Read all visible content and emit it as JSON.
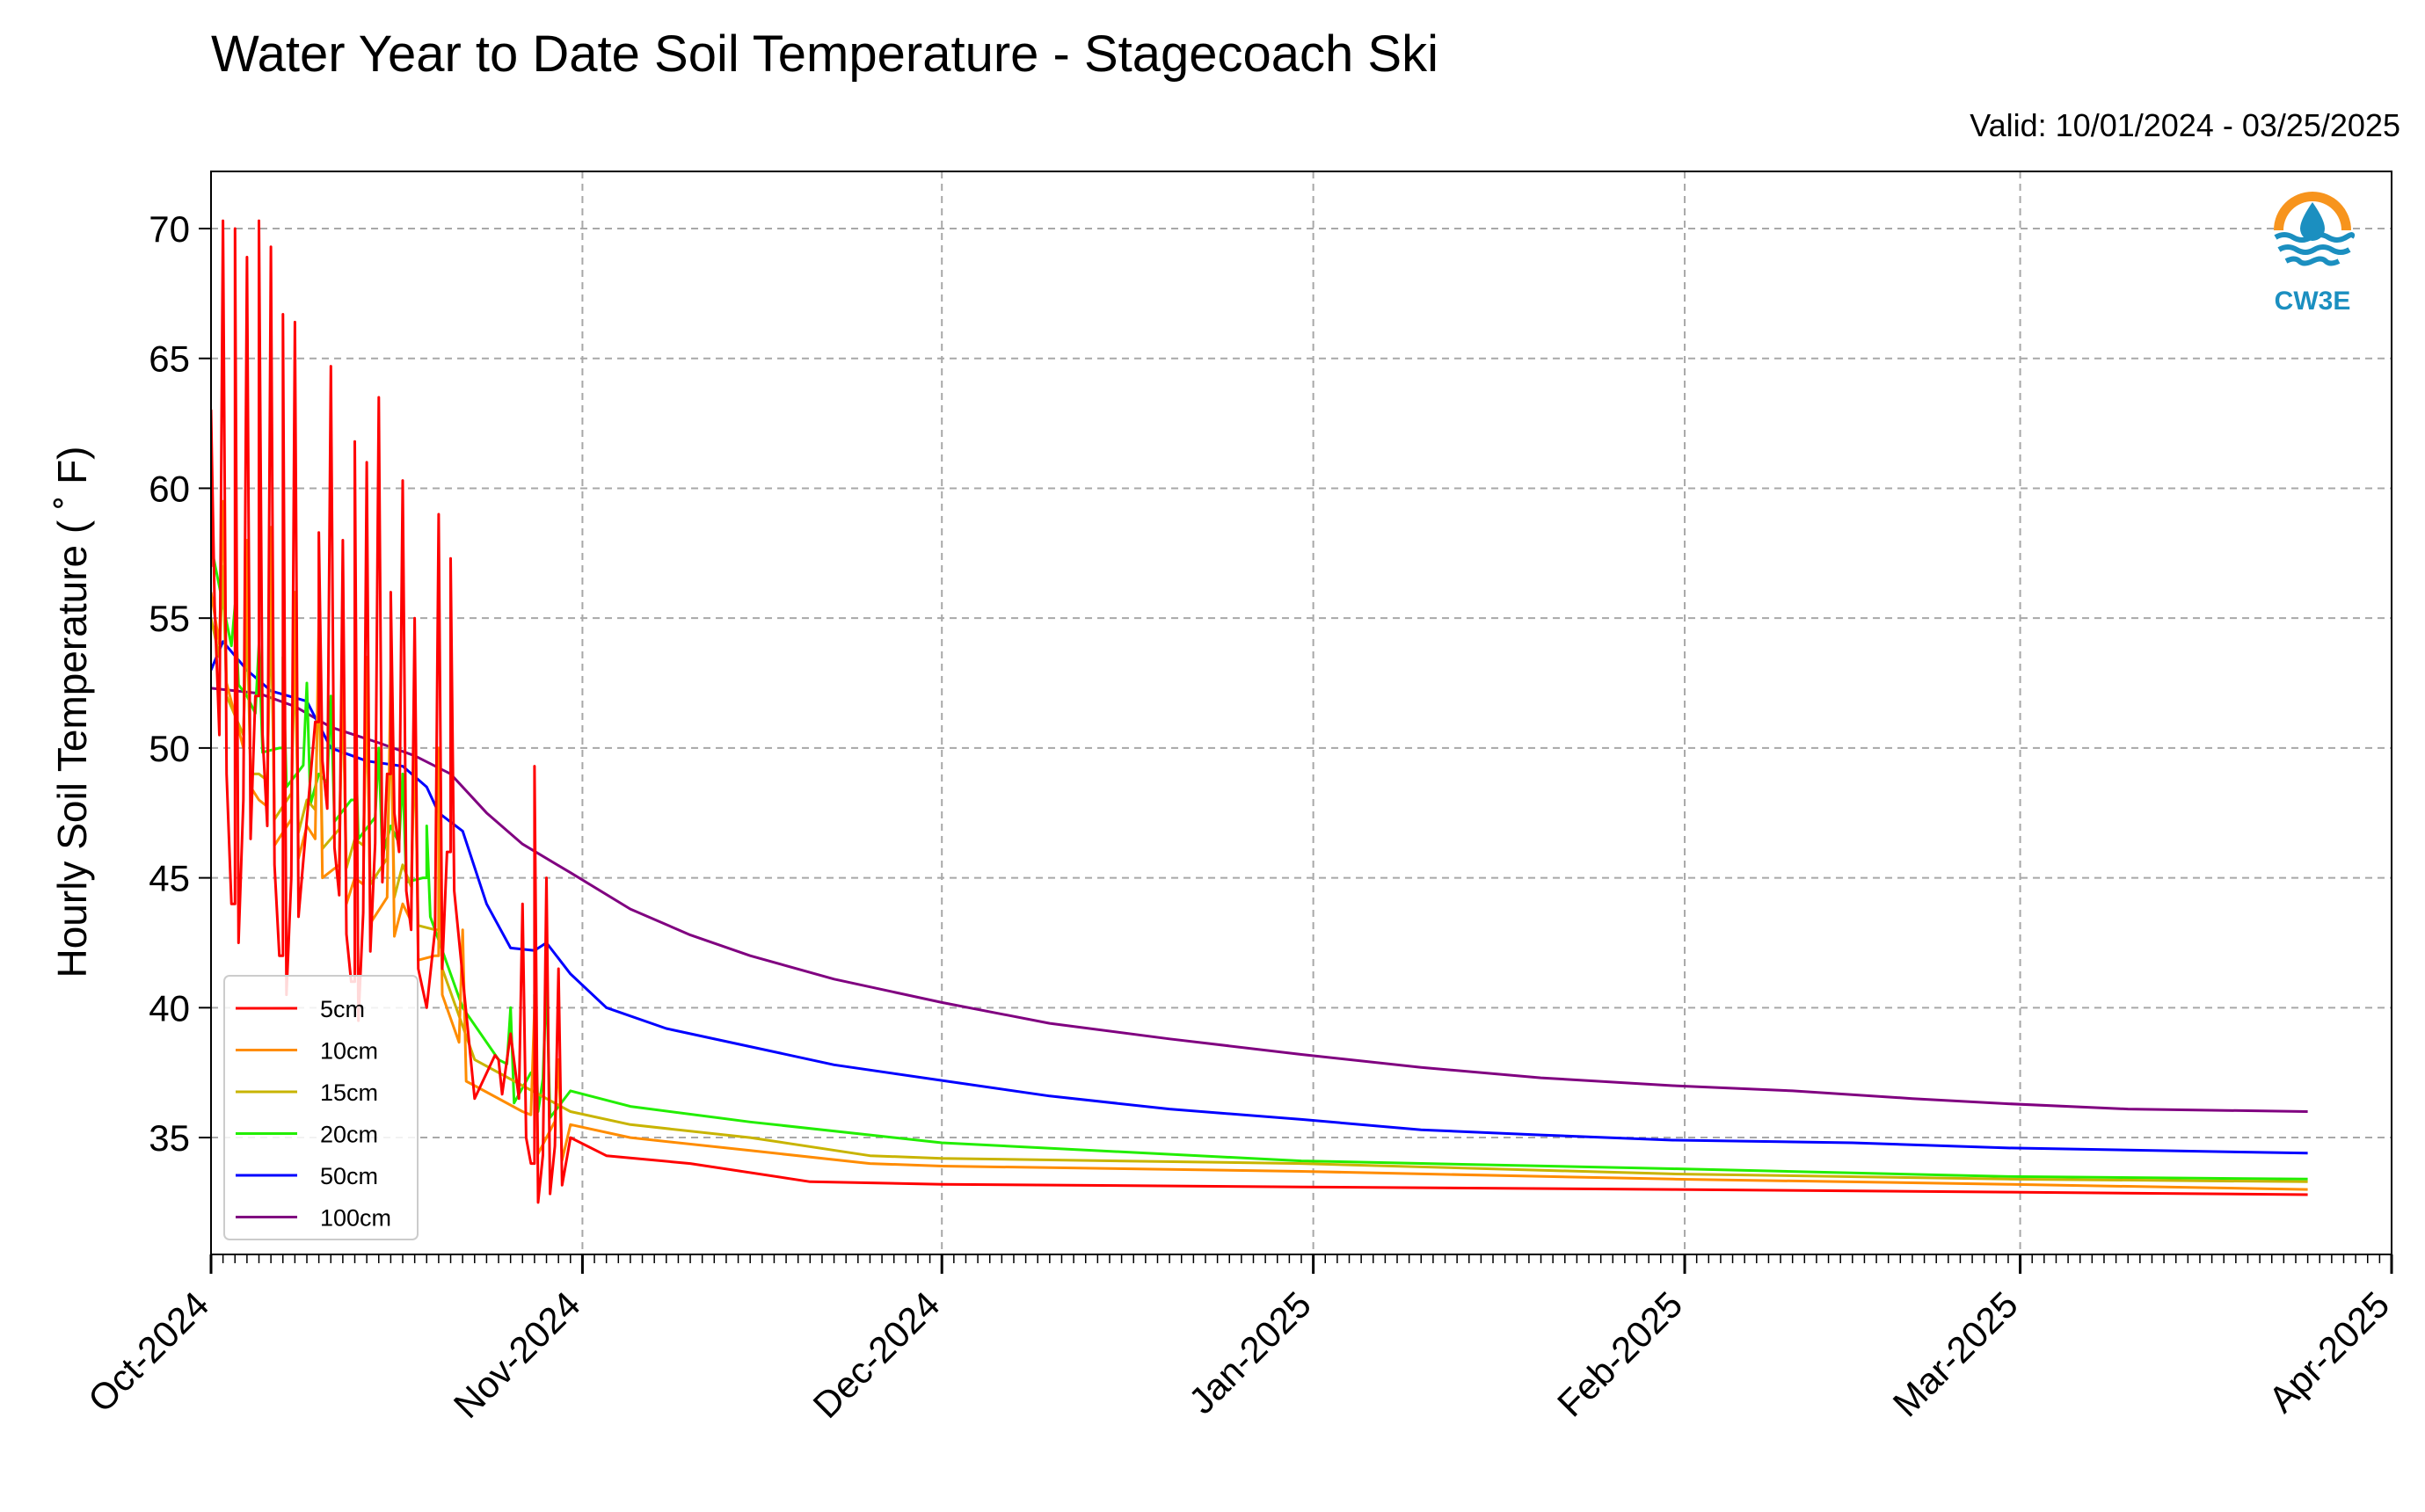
{
  "title": "Water Year to Date Soil Temperature - Stagecoach Ski",
  "valid": "Valid: 10/01/2024 - 03/25/2025",
  "logo": {
    "text": "CW3E",
    "icon": "water-drop-logo-icon",
    "color_orange": "#f7941d",
    "color_blue": "#1b8fc0"
  },
  "chart_data": {
    "type": "line",
    "ylabel": "Hourly Soil Temperature ($^\\circ$F)",
    "ylabel_display": "Hourly Soil Temperature ( ˚ F)",
    "xlabel": "",
    "ylim": [
      30.5,
      72.2
    ],
    "xlim": [
      "2024-10-01",
      "2025-04-01"
    ],
    "yticks": [
      35,
      40,
      45,
      50,
      55,
      60,
      65,
      70
    ],
    "xticks": [
      "Oct-2024",
      "Nov-2024",
      "Dec-2024",
      "Jan-2025",
      "Feb-2025",
      "Mar-2025",
      "Apr-2025"
    ],
    "grid": true,
    "legend_position": "lower-left",
    "series": [
      {
        "name": "5cm",
        "color": "#ff0000",
        "points": [
          [
            "2024-10-01",
            57
          ],
          [
            "2024-10-03",
            44
          ],
          [
            "2024-10-05",
            52
          ],
          [
            "2024-10-07",
            42
          ],
          [
            "2024-10-10",
            51
          ],
          [
            "2024-10-13",
            41
          ],
          [
            "2024-10-16",
            49
          ],
          [
            "2024-10-19",
            40
          ],
          [
            "2024-10-21",
            46
          ],
          [
            "2024-10-23",
            36.5
          ],
          [
            "2024-10-26",
            39
          ],
          [
            "2024-10-28",
            34
          ],
          [
            "2024-10-31",
            35
          ],
          [
            "2024-11-03",
            34.3
          ],
          [
            "2024-11-10",
            34
          ],
          [
            "2024-11-20",
            33.3
          ],
          [
            "2024-12-01",
            33.2
          ],
          [
            "2024-12-31",
            33.1
          ],
          [
            "2025-01-31",
            33
          ],
          [
            "2025-02-28",
            32.9
          ],
          [
            "2025-03-25",
            32.8
          ]
        ],
        "spikes": [
          [
            "2024-10-01",
            63
          ],
          [
            "2024-10-02",
            70.3
          ],
          [
            "2024-10-03",
            70
          ],
          [
            "2024-10-04",
            68.9
          ],
          [
            "2024-10-05",
            70.3
          ],
          [
            "2024-10-06",
            69.3
          ],
          [
            "2024-10-07",
            66.7
          ],
          [
            "2024-10-08",
            66.4
          ],
          [
            "2024-10-10",
            58.3
          ],
          [
            "2024-10-11",
            64.7
          ],
          [
            "2024-10-12",
            58
          ],
          [
            "2024-10-13",
            61.8
          ],
          [
            "2024-10-14",
            61
          ],
          [
            "2024-10-15",
            63.5
          ],
          [
            "2024-10-16",
            56
          ],
          [
            "2024-10-17",
            60.3
          ],
          [
            "2024-10-18",
            55
          ],
          [
            "2024-10-20",
            59
          ],
          [
            "2024-10-21",
            57.3
          ],
          [
            "2024-10-25",
            38
          ],
          [
            "2024-10-27",
            44
          ],
          [
            "2024-10-28",
            49.3
          ],
          [
            "2024-10-29",
            45
          ],
          [
            "2024-10-30",
            41.5
          ]
        ]
      },
      {
        "name": "10cm",
        "color": "#ff8c00",
        "points": [
          [
            "2024-10-01",
            56
          ],
          [
            "2024-10-05",
            48
          ],
          [
            "2024-10-09",
            47
          ],
          [
            "2024-10-13",
            45
          ],
          [
            "2024-10-17",
            44
          ],
          [
            "2024-10-20",
            42
          ],
          [
            "2024-10-23",
            37
          ],
          [
            "2024-10-27",
            36
          ],
          [
            "2024-10-31",
            35.5
          ],
          [
            "2024-11-05",
            35
          ],
          [
            "2024-11-15",
            34.5
          ],
          [
            "2024-11-25",
            34
          ],
          [
            "2024-12-01",
            33.9
          ],
          [
            "2024-12-31",
            33.7
          ],
          [
            "2025-01-31",
            33.4
          ],
          [
            "2025-02-28",
            33.2
          ],
          [
            "2025-03-25",
            33
          ]
        ],
        "spikes": [
          [
            "2024-10-02",
            59.5
          ],
          [
            "2024-10-04",
            58
          ],
          [
            "2024-10-06",
            58.5
          ],
          [
            "2024-10-08",
            56
          ],
          [
            "2024-10-10",
            55
          ],
          [
            "2024-10-12",
            54
          ],
          [
            "2024-10-14",
            53.5
          ],
          [
            "2024-10-16",
            53
          ],
          [
            "2024-10-18",
            52
          ],
          [
            "2024-10-20",
            50
          ],
          [
            "2024-10-22",
            43
          ],
          [
            "2024-10-28",
            40
          ],
          [
            "2024-10-30",
            38
          ]
        ]
      },
      {
        "name": "15cm",
        "color": "#c8b400",
        "points": [
          [
            "2024-10-01",
            55
          ],
          [
            "2024-10-05",
            49
          ],
          [
            "2024-10-09",
            48
          ],
          [
            "2024-10-13",
            46.5
          ],
          [
            "2024-10-17",
            45.5
          ],
          [
            "2024-10-20",
            43
          ],
          [
            "2024-10-23",
            38
          ],
          [
            "2024-10-27",
            37
          ],
          [
            "2024-10-31",
            36
          ],
          [
            "2024-11-05",
            35.5
          ],
          [
            "2024-11-15",
            35
          ],
          [
            "2024-11-25",
            34.3
          ],
          [
            "2024-12-01",
            34.2
          ],
          [
            "2024-12-31",
            34
          ],
          [
            "2025-01-31",
            33.6
          ],
          [
            "2025-02-28",
            33.4
          ],
          [
            "2025-03-25",
            33.3
          ]
        ],
        "spikes": [
          [
            "2024-10-02",
            57
          ],
          [
            "2024-10-04",
            55
          ],
          [
            "2024-10-06",
            55.5
          ],
          [
            "2024-10-08",
            53.5
          ],
          [
            "2024-10-10",
            53
          ],
          [
            "2024-10-12",
            52
          ],
          [
            "2024-10-14",
            51.5
          ],
          [
            "2024-10-16",
            51
          ],
          [
            "2024-10-18",
            50
          ],
          [
            "2024-10-20",
            48
          ]
        ]
      },
      {
        "name": "20cm",
        "color": "#22ee00",
        "points": [
          [
            "2024-10-01",
            57.8
          ],
          [
            "2024-10-04",
            52
          ],
          [
            "2024-10-07",
            50
          ],
          [
            "2024-10-10",
            49
          ],
          [
            "2024-10-13",
            48
          ],
          [
            "2024-10-16",
            47
          ],
          [
            "2024-10-19",
            45
          ],
          [
            "2024-10-22",
            40
          ],
          [
            "2024-10-25",
            38
          ],
          [
            "2024-10-28",
            37.5
          ],
          [
            "2024-10-31",
            36.8
          ],
          [
            "2024-11-05",
            36.2
          ],
          [
            "2024-11-15",
            35.6
          ],
          [
            "2024-11-25",
            35.1
          ],
          [
            "2024-12-01",
            34.8
          ],
          [
            "2024-12-31",
            34.1
          ],
          [
            "2025-01-31",
            33.8
          ],
          [
            "2025-02-28",
            33.5
          ],
          [
            "2025-03-25",
            33.4
          ]
        ],
        "spikes": [
          [
            "2024-10-03",
            55.5
          ],
          [
            "2024-10-05",
            54
          ],
          [
            "2024-10-07",
            53.5
          ],
          [
            "2024-10-09",
            52.5
          ],
          [
            "2024-10-11",
            52
          ],
          [
            "2024-10-13",
            51
          ],
          [
            "2024-10-15",
            50
          ],
          [
            "2024-10-17",
            49
          ],
          [
            "2024-10-19",
            47
          ],
          [
            "2024-10-26",
            40
          ],
          [
            "2024-10-28",
            40.5
          ],
          [
            "2024-10-29",
            41
          ]
        ]
      },
      {
        "name": "50cm",
        "color": "#0000ff",
        "points": [
          [
            "2024-10-01",
            53
          ],
          [
            "2024-10-02",
            54.1
          ],
          [
            "2024-10-04",
            53
          ],
          [
            "2024-10-06",
            52.2
          ],
          [
            "2024-10-09",
            51.8
          ],
          [
            "2024-10-11",
            50
          ],
          [
            "2024-10-14",
            49.5
          ],
          [
            "2024-10-17",
            49.3
          ],
          [
            "2024-10-19",
            48.5
          ],
          [
            "2024-10-20",
            47.5
          ],
          [
            "2024-10-22",
            46.8
          ],
          [
            "2024-10-24",
            44
          ],
          [
            "2024-10-26",
            42.3
          ],
          [
            "2024-10-28",
            42.2
          ],
          [
            "2024-10-29",
            42.5
          ],
          [
            "2024-10-31",
            41.3
          ],
          [
            "2024-11-03",
            40
          ],
          [
            "2024-11-08",
            39.2
          ],
          [
            "2024-11-15",
            38.5
          ],
          [
            "2024-11-22",
            37.8
          ],
          [
            "2024-12-01",
            37.2
          ],
          [
            "2024-12-10",
            36.6
          ],
          [
            "2024-12-20",
            36.1
          ],
          [
            "2024-12-31",
            35.7
          ],
          [
            "2025-01-10",
            35.3
          ],
          [
            "2025-01-20",
            35.1
          ],
          [
            "2025-01-31",
            34.9
          ],
          [
            "2025-02-15",
            34.8
          ],
          [
            "2025-02-28",
            34.6
          ],
          [
            "2025-03-25",
            34.4
          ]
        ]
      },
      {
        "name": "100cm",
        "color": "#800080",
        "points": [
          [
            "2024-10-01",
            52.3
          ],
          [
            "2024-10-05",
            52.1
          ],
          [
            "2024-10-08",
            51.6
          ],
          [
            "2024-10-11",
            50.8
          ],
          [
            "2024-10-15",
            50.2
          ],
          [
            "2024-10-18",
            49.7
          ],
          [
            "2024-10-21",
            49
          ],
          [
            "2024-10-24",
            47.5
          ],
          [
            "2024-10-27",
            46.3
          ],
          [
            "2024-10-31",
            45.2
          ],
          [
            "2024-11-05",
            43.8
          ],
          [
            "2024-11-10",
            42.8
          ],
          [
            "2024-11-15",
            42
          ],
          [
            "2024-11-22",
            41.1
          ],
          [
            "2024-12-01",
            40.2
          ],
          [
            "2024-12-10",
            39.4
          ],
          [
            "2024-12-20",
            38.8
          ],
          [
            "2024-12-31",
            38.2
          ],
          [
            "2025-01-10",
            37.7
          ],
          [
            "2025-01-20",
            37.3
          ],
          [
            "2025-01-31",
            37
          ],
          [
            "2025-02-10",
            36.8
          ],
          [
            "2025-02-20",
            36.5
          ],
          [
            "2025-02-28",
            36.3
          ],
          [
            "2025-03-10",
            36.1
          ],
          [
            "2025-03-25",
            36
          ]
        ]
      }
    ]
  }
}
